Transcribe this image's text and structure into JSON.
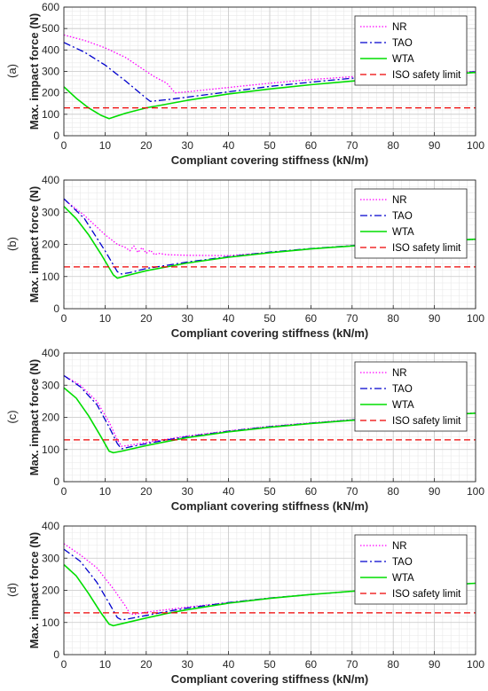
{
  "chart_data": [
    {
      "type": "line",
      "panel_label": "(a)",
      "xlabel": "Compliant covering stiffness (kN/m)",
      "ylabel": "Max. impact force (N)",
      "xlim": [
        0,
        100
      ],
      "ylim": [
        0,
        600
      ],
      "xticks": [
        0,
        10,
        20,
        30,
        40,
        50,
        60,
        70,
        80,
        90,
        100
      ],
      "yticks": [
        0,
        100,
        200,
        300,
        400,
        500,
        600
      ],
      "grid": true,
      "minor_grid": true,
      "legend_position": "top-right",
      "series": [
        {
          "name": "NR",
          "color": "#ff00ff",
          "style": "dotted",
          "x": [
            0,
            5,
            10,
            15,
            20,
            22,
            25,
            27,
            30,
            40,
            50,
            60,
            70,
            80,
            90,
            100
          ],
          "y": [
            470,
            445,
            410,
            365,
            300,
            275,
            245,
            200,
            205,
            225,
            245,
            262,
            275,
            285,
            293,
            300
          ]
        },
        {
          "name": "TAO",
          "color": "#0000cd",
          "style": "dashdot",
          "x": [
            0,
            5,
            10,
            15,
            20,
            21,
            25,
            30,
            40,
            50,
            60,
            70,
            80,
            90,
            100
          ],
          "y": [
            435,
            390,
            330,
            255,
            175,
            160,
            168,
            180,
            205,
            230,
            250,
            268,
            280,
            290,
            298
          ]
        },
        {
          "name": "WTA",
          "color": "#00dd00",
          "style": "solid",
          "x": [
            0,
            3,
            6,
            9,
            11,
            15,
            20,
            30,
            40,
            50,
            60,
            70,
            80,
            90,
            100
          ],
          "y": [
            228,
            175,
            130,
            95,
            80,
            105,
            130,
            165,
            195,
            218,
            238,
            255,
            270,
            283,
            295
          ]
        },
        {
          "name": "ISO safety limit",
          "color": "#ee0000",
          "style": "dashed",
          "x": [
            0,
            100
          ],
          "y": [
            130,
            130
          ]
        }
      ]
    },
    {
      "type": "line",
      "panel_label": "(b)",
      "xlabel": "Compliant covering stiffness (kN/m)",
      "ylabel": "Max. impact force (N)",
      "xlim": [
        0,
        100
      ],
      "ylim": [
        0,
        400
      ],
      "xticks": [
        0,
        10,
        20,
        30,
        40,
        50,
        60,
        70,
        80,
        90,
        100
      ],
      "yticks": [
        0,
        100,
        200,
        300,
        400
      ],
      "grid": true,
      "minor_grid": true,
      "legend_position": "top-right",
      "series": [
        {
          "name": "NR",
          "color": "#ff00ff",
          "style": "dotted",
          "x": [
            0,
            5,
            10,
            13,
            15,
            16,
            17,
            18,
            19,
            20,
            21,
            22,
            23,
            25,
            30,
            40,
            50,
            60,
            70,
            80,
            90,
            100
          ],
          "y": [
            340,
            290,
            230,
            200,
            190,
            180,
            195,
            175,
            190,
            172,
            182,
            168,
            172,
            168,
            166,
            165,
            175,
            186,
            196,
            204,
            210,
            215
          ]
        },
        {
          "name": "TAO",
          "color": "#0000cd",
          "style": "dashdot",
          "x": [
            0,
            5,
            10,
            13,
            14,
            16,
            20,
            25,
            30,
            40,
            50,
            60,
            70,
            80,
            90,
            100
          ],
          "y": [
            342,
            280,
            180,
            115,
            108,
            112,
            125,
            135,
            145,
            162,
            176,
            187,
            196,
            204,
            210,
            216
          ]
        },
        {
          "name": "WTA",
          "color": "#00dd00",
          "style": "solid",
          "x": [
            0,
            3,
            6,
            9,
            12,
            13,
            15,
            20,
            25,
            30,
            40,
            50,
            60,
            70,
            80,
            90,
            100
          ],
          "y": [
            318,
            280,
            230,
            170,
            105,
            95,
            102,
            118,
            130,
            142,
            160,
            174,
            186,
            195,
            203,
            210,
            216
          ]
        },
        {
          "name": "ISO safety limit",
          "color": "#ee0000",
          "style": "dashed",
          "x": [
            0,
            100
          ],
          "y": [
            130,
            130
          ]
        }
      ]
    },
    {
      "type": "line",
      "panel_label": "(c)",
      "xlabel": "Compliant covering stiffness (kN/m)",
      "ylabel": "Max. impact force (N)",
      "xlim": [
        0,
        100
      ],
      "ylim": [
        0,
        400
      ],
      "xticks": [
        0,
        10,
        20,
        30,
        40,
        50,
        60,
        70,
        80,
        90,
        100
      ],
      "yticks": [
        0,
        100,
        200,
        300,
        400
      ],
      "grid": true,
      "minor_grid": true,
      "legend_position": "top-right",
      "series": [
        {
          "name": "NR",
          "color": "#ff00ff",
          "style": "dotted",
          "x": [
            0,
            4,
            8,
            11,
            13,
            14,
            16,
            20,
            25,
            30,
            40,
            50,
            60,
            70,
            80,
            90,
            100
          ],
          "y": [
            330,
            300,
            250,
            185,
            130,
            110,
            113,
            122,
            132,
            142,
            158,
            172,
            183,
            193,
            201,
            208,
            214
          ]
        },
        {
          "name": "TAO",
          "color": "#0000cd",
          "style": "dashdot",
          "x": [
            0,
            4,
            8,
            11,
            13,
            14,
            16,
            20,
            25,
            30,
            40,
            50,
            60,
            70,
            80,
            90,
            100
          ],
          "y": [
            330,
            295,
            240,
            170,
            118,
            102,
            108,
            118,
            130,
            140,
            157,
            171,
            182,
            192,
            200,
            207,
            213
          ]
        },
        {
          "name": "WTA",
          "color": "#00dd00",
          "style": "solid",
          "x": [
            0,
            3,
            6,
            9,
            11,
            12,
            14,
            20,
            25,
            30,
            40,
            50,
            60,
            70,
            80,
            90,
            100
          ],
          "y": [
            292,
            260,
            205,
            140,
            95,
            90,
            95,
            112,
            125,
            137,
            155,
            169,
            181,
            191,
            199,
            206,
            213
          ]
        },
        {
          "name": "ISO safety limit",
          "color": "#ee0000",
          "style": "dashed",
          "x": [
            0,
            100
          ],
          "y": [
            130,
            130
          ]
        }
      ]
    },
    {
      "type": "line",
      "panel_label": "(d)",
      "xlabel": "Compliant covering stiffness (kN/m)",
      "ylabel": "Max. impact force (N)",
      "xlim": [
        0,
        100
      ],
      "ylim": [
        0,
        400
      ],
      "xticks": [
        0,
        10,
        20,
        30,
        40,
        50,
        60,
        70,
        80,
        90,
        100
      ],
      "yticks": [
        0,
        100,
        200,
        300,
        400
      ],
      "grid": true,
      "minor_grid": true,
      "legend_position": "top-right",
      "series": [
        {
          "name": "NR",
          "color": "#ff00ff",
          "style": "dotted",
          "x": [
            0,
            4,
            8,
            12,
            15,
            16,
            17,
            20,
            25,
            30,
            40,
            50,
            60,
            70,
            80,
            90,
            100
          ],
          "y": [
            345,
            310,
            270,
            205,
            150,
            128,
            125,
            132,
            140,
            148,
            162,
            176,
            187,
            197,
            206,
            214,
            222
          ]
        },
        {
          "name": "TAO",
          "color": "#0000cd",
          "style": "dashdot",
          "x": [
            0,
            4,
            8,
            11,
            13,
            14,
            16,
            20,
            25,
            30,
            40,
            50,
            60,
            70,
            80,
            90,
            100
          ],
          "y": [
            328,
            290,
            225,
            160,
            115,
            108,
            112,
            122,
            134,
            145,
            162,
            176,
            187,
            197,
            206,
            214,
            222
          ]
        },
        {
          "name": "WTA",
          "color": "#00dd00",
          "style": "solid",
          "x": [
            0,
            3,
            6,
            9,
            11,
            12,
            14,
            20,
            25,
            30,
            40,
            50,
            60,
            70,
            80,
            90,
            100
          ],
          "y": [
            280,
            245,
            190,
            130,
            95,
            90,
            96,
            114,
            128,
            140,
            160,
            175,
            187,
            197,
            206,
            214,
            222
          ]
        },
        {
          "name": "ISO safety limit",
          "color": "#ee0000",
          "style": "dashed",
          "x": [
            0,
            100
          ],
          "y": [
            130,
            130
          ]
        }
      ]
    }
  ]
}
